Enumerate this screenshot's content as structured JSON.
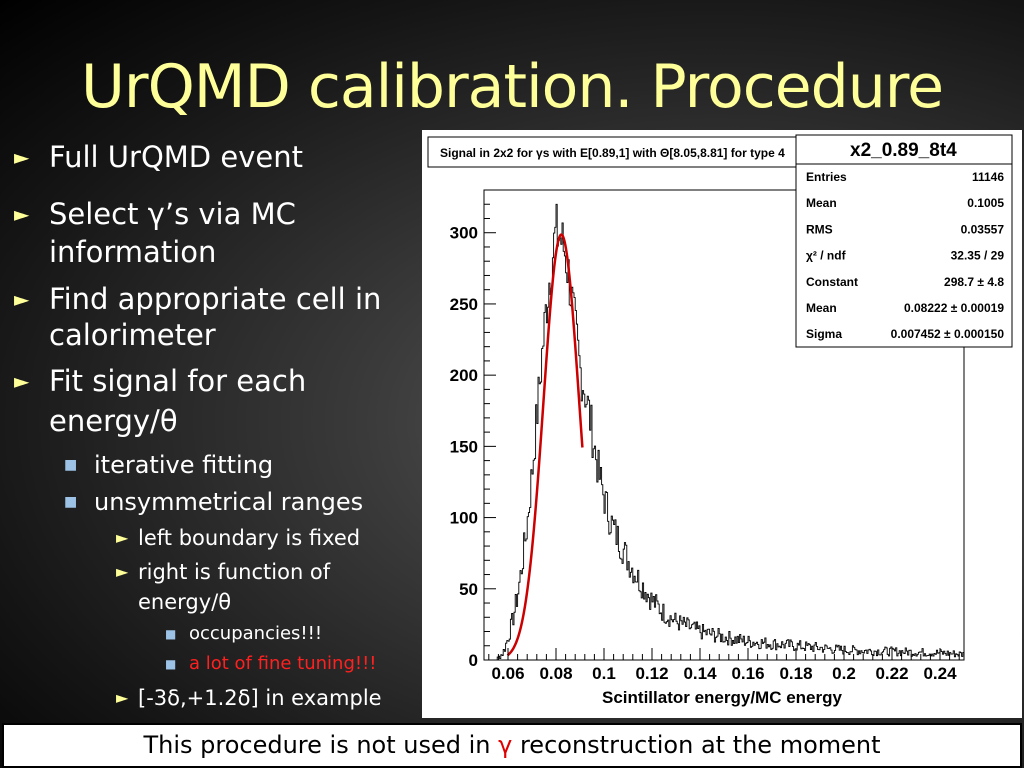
{
  "slide": {
    "title": "UrQMD calibration. Procedure",
    "bullets": [
      {
        "text": "Full UrQMD event"
      },
      {
        "line1": "Select γ’s via MC",
        "line2": "information"
      },
      {
        "line1": "Find appropriate cell in",
        "line2": "calorimeter"
      },
      {
        "line1": "Fit signal for each",
        "line2": "energy/θ"
      }
    ],
    "sub_bullets": [
      "iterative fitting",
      "unsymmetrical ranges"
    ],
    "sub_sub_bullets": [
      {
        "text": "left boundary is fixed"
      },
      {
        "line1": "right is function of",
        "line2": "energy/θ"
      }
    ],
    "level4_bullets": [
      "occupancies!!!",
      "a lot of fine tuning!!!"
    ],
    "example_bullet": "[-3δ,+1.2δ] in example",
    "footer_text": "This procedure is not used in ",
    "footer_gamma": "γ",
    "footer_tail": " reconstruction at the moment",
    "colors": {
      "title": "#ffff99",
      "fit_curve": "#cc0000",
      "highlight": "#ff2020"
    }
  },
  "chart_data": {
    "type": "histogram",
    "title": "Signal in 2x2 for γs with E[0.89,1] with Θ[8.05,8.81] for type 4",
    "histogram_name": "x2_0.89_8t4",
    "xlabel": "Scintillator energy/MC energy",
    "ylabel": "",
    "xlim": [
      0.05,
      0.25
    ],
    "ylim": [
      0,
      330
    ],
    "xticks": [
      "0.06",
      "0.08",
      "0.1",
      "0.12",
      "0.14",
      "0.16",
      "0.18",
      "0.2",
      "0.22",
      "0.24"
    ],
    "xtick_values": [
      0.06,
      0.08,
      0.1,
      0.12,
      0.14,
      0.16,
      0.18,
      0.2,
      0.22,
      0.24
    ],
    "yticks": [
      "0",
      "50",
      "100",
      "150",
      "200",
      "250",
      "300"
    ],
    "ytick_values": [
      0,
      50,
      100,
      150,
      200,
      250,
      300
    ],
    "stats": [
      {
        "label": "Entries",
        "value": "11146"
      },
      {
        "label": "Mean",
        "value": "0.1005"
      },
      {
        "label": "RMS",
        "value": "0.03557"
      },
      {
        "label": "χ² / ndf",
        "value": "32.35 / 29"
      },
      {
        "label": "Constant",
        "value": "298.7 ± 4.8"
      },
      {
        "label": "Mean",
        "value": "0.08222 ± 0.00019"
      },
      {
        "label": "Sigma",
        "value": "0.007452 ± 0.000150"
      }
    ],
    "fit": {
      "function": "gaus",
      "constant": 298.7,
      "mean": 0.08222,
      "sigma": 0.007452,
      "range": [
        0.0598,
        0.0912
      ]
    },
    "bin_width": 0.0005,
    "histogram_profile": {
      "x": [
        0.055,
        0.058,
        0.06,
        0.062,
        0.064,
        0.066,
        0.068,
        0.07,
        0.072,
        0.074,
        0.076,
        0.078,
        0.08,
        0.082,
        0.084,
        0.086,
        0.088,
        0.09,
        0.092,
        0.094,
        0.096,
        0.098,
        0.1,
        0.102,
        0.104,
        0.106,
        0.108,
        0.11,
        0.115,
        0.12,
        0.125,
        0.13,
        0.14,
        0.15,
        0.16,
        0.18,
        0.2,
        0.22,
        0.24,
        0.25
      ],
      "y": [
        0,
        5,
        15,
        28,
        45,
        68,
        95,
        130,
        170,
        210,
        248,
        278,
        300,
        296,
        285,
        262,
        232,
        205,
        190,
        172,
        150,
        130,
        115,
        102,
        92,
        85,
        78,
        70,
        55,
        42,
        33,
        27,
        20,
        16,
        13,
        10,
        7,
        6,
        5,
        4
      ]
    }
  }
}
